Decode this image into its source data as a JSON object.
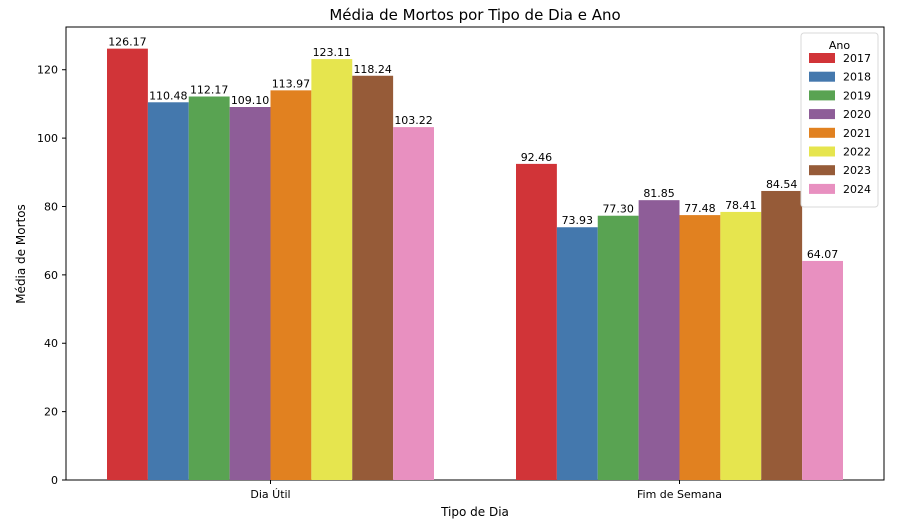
{
  "chart_data": {
    "type": "bar",
    "title": "Média de Mortos por Tipo de Dia e Ano",
    "xlabel": "Tipo de Dia",
    "ylabel": "Média de Mortos",
    "categories": [
      "Dia Útil",
      "Fim de Semana"
    ],
    "ylim": [
      0,
      132.5
    ],
    "yticks": [
      0,
      20,
      40,
      60,
      80,
      100,
      120
    ],
    "legend": {
      "title": "Ano",
      "position": "top-right"
    },
    "series": [
      {
        "name": "2017",
        "color": "#d13438",
        "values": [
          126.17,
          92.46
        ],
        "labels": [
          "126.17",
          "92.46"
        ]
      },
      {
        "name": "2018",
        "color": "#4478ad",
        "values": [
          110.48,
          73.93
        ],
        "labels": [
          "110.48",
          "73.93"
        ]
      },
      {
        "name": "2019",
        "color": "#59a352",
        "values": [
          112.17,
          77.3
        ],
        "labels": [
          "112.17",
          "77.30"
        ]
      },
      {
        "name": "2020",
        "color": "#8e5d98",
        "values": [
          109.1,
          81.85
        ],
        "labels": [
          "109.10",
          "81.85"
        ]
      },
      {
        "name": "2021",
        "color": "#e18120",
        "values": [
          113.97,
          77.48
        ],
        "labels": [
          "113.97",
          "77.48"
        ]
      },
      {
        "name": "2022",
        "color": "#e6e54e",
        "values": [
          123.11,
          78.41
        ],
        "labels": [
          "123.11",
          "78.41"
        ]
      },
      {
        "name": "2023",
        "color": "#965b38",
        "values": [
          118.24,
          84.54
        ],
        "labels": [
          "118.24",
          "84.54"
        ]
      },
      {
        "name": "2024",
        "color": "#e890c0",
        "values": [
          103.22,
          64.07
        ],
        "labels": [
          "103.22",
          "64.07"
        ]
      }
    ]
  }
}
